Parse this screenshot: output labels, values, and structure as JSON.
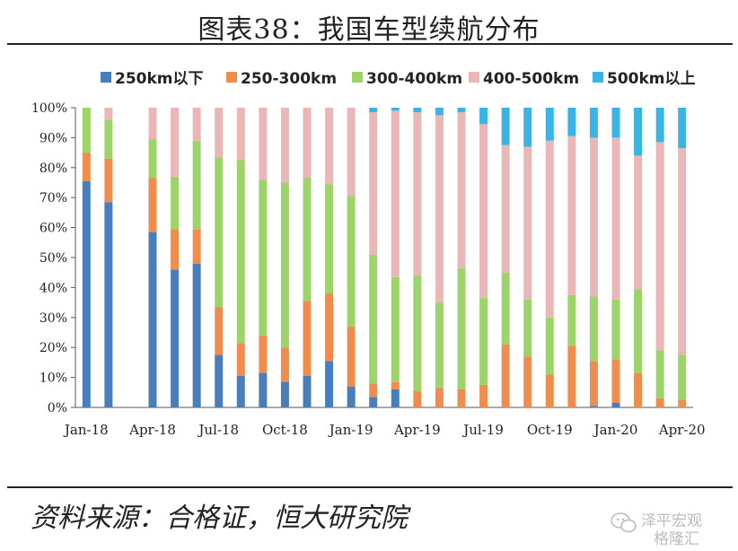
{
  "title": "图表38：我国车型续航分布",
  "source": "资料来源：合格证，恒大研究院",
  "watermark": {
    "line1": "泽平宏观",
    "line2": "格隆汇"
  },
  "chart_data": {
    "type": "bar",
    "stacked": true,
    "percent": true,
    "categories": [
      "Jan-18",
      "Feb-18",
      "Mar-18",
      "Apr-18",
      "May-18",
      "Jun-18",
      "Jul-18",
      "Aug-18",
      "Sep-18",
      "Oct-18",
      "Nov-18",
      "Dec-18",
      "Jan-19",
      "Feb-19",
      "Mar-19",
      "Apr-19",
      "May-19",
      "Jun-19",
      "Jul-19",
      "Aug-19",
      "Sep-19",
      "Oct-19",
      "Nov-19",
      "Dec-19",
      "Jan-20",
      "Feb-20",
      "Mar-20",
      "Apr-20"
    ],
    "x_tick_labels": [
      "Jan-18",
      "Apr-18",
      "Jul-18",
      "Oct-18",
      "Jan-19",
      "Apr-19",
      "Jul-19",
      "Oct-19",
      "Jan-20",
      "Apr-20"
    ],
    "y_tick_labels": [
      "0%",
      "10%",
      "20%",
      "30%",
      "40%",
      "50%",
      "60%",
      "70%",
      "80%",
      "90%",
      "100%"
    ],
    "ylim": [
      0,
      100
    ],
    "legend_position": "top",
    "series": [
      {
        "name": "250km以下",
        "color": "#4a7ebb",
        "values": [
          75.5,
          68.5,
          0,
          58.5,
          46,
          48,
          17.5,
          10.5,
          11.5,
          8.5,
          10.5,
          15.5,
          7,
          3.5,
          6,
          0,
          0,
          0,
          0,
          0,
          0,
          0,
          0,
          0.5,
          1.5,
          0,
          0,
          0
        ]
      },
      {
        "name": "250-300km",
        "color": "#f08c4c",
        "values": [
          9.5,
          14.5,
          0,
          18,
          13.5,
          11.5,
          16,
          11,
          12.5,
          11.5,
          25,
          22.5,
          20,
          4.5,
          2.5,
          5.5,
          6.5,
          6,
          7.5,
          21,
          17,
          11,
          20.5,
          15,
          14.5,
          11.5,
          3,
          2.5
        ]
      },
      {
        "name": "300-400km",
        "color": "#9dd46a",
        "values": [
          15,
          13,
          0,
          13,
          17.5,
          29.5,
          50,
          61,
          52,
          55,
          41,
          36.5,
          43.5,
          43,
          35,
          38.5,
          28.5,
          40.5,
          29,
          24,
          19,
          19,
          17,
          21.5,
          20,
          28,
          16,
          15
        ]
      },
      {
        "name": "400-500km",
        "color": "#ebb6b6",
        "values": [
          0,
          4,
          0,
          10.5,
          23,
          11,
          16.5,
          17.5,
          24,
          25,
          23.5,
          25.5,
          29.5,
          47.5,
          55.5,
          54.5,
          62.5,
          52,
          58,
          42.5,
          51,
          59,
          53,
          53,
          54,
          44.5,
          69.5,
          69
        ]
      },
      {
        "name": "500km以上",
        "color": "#3ab4e6",
        "values": [
          0,
          0,
          0,
          0,
          0,
          0,
          0,
          0,
          0,
          0,
          0,
          0,
          0,
          1.5,
          1,
          1.5,
          2.5,
          1.5,
          5.5,
          12.5,
          13,
          11,
          9.5,
          10,
          10,
          16,
          11.5,
          13.5
        ]
      }
    ]
  }
}
